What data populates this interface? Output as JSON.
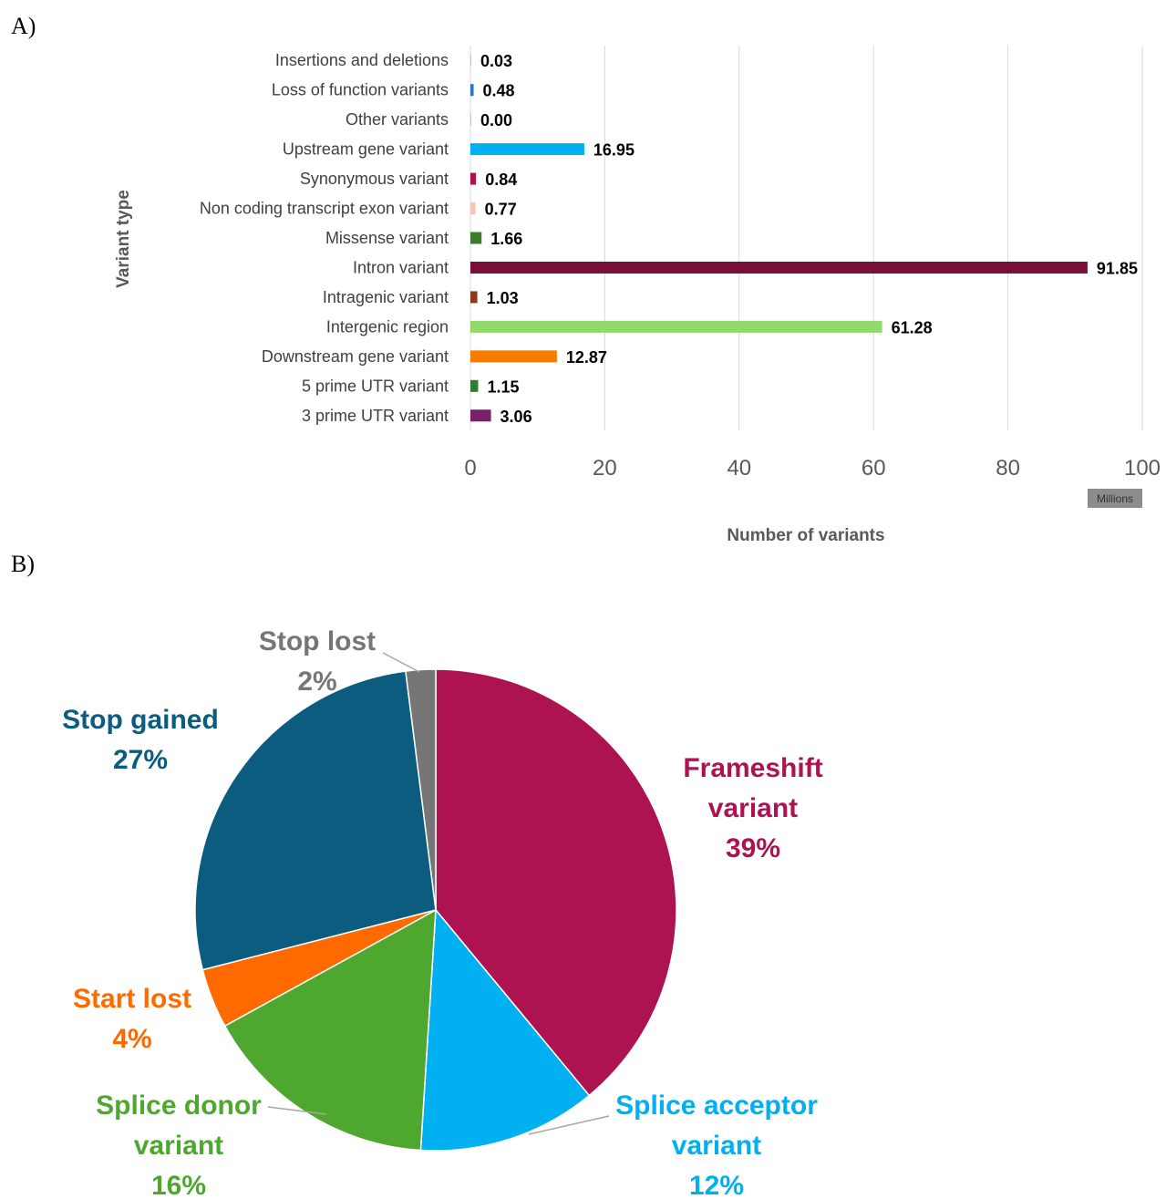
{
  "panels": {
    "a_label": "A)",
    "b_label": "B)"
  },
  "chart_data": [
    {
      "type": "bar",
      "orientation": "horizontal",
      "categories": [
        "Insertions and deletions",
        "Loss of function variants",
        "Other variants",
        "Upstream gene variant",
        "Synonymous variant",
        "Non coding transcript exon variant",
        "Missense variant",
        "Intron variant",
        "Intragenic variant",
        "Intergenic region",
        "Downstream gene variant",
        "5 prime UTR variant",
        "3 prime UTR variant"
      ],
      "values": [
        0.03,
        0.48,
        0.0,
        16.95,
        0.84,
        0.77,
        1.66,
        91.85,
        1.03,
        61.28,
        12.87,
        1.15,
        3.06
      ],
      "value_labels": [
        "0.03",
        "0.48",
        "0.00",
        "16.95",
        "0.84",
        "0.77",
        "1.66",
        "91.85",
        "1.03",
        "61.28",
        "12.87",
        "1.15",
        "3.06"
      ],
      "colors": [
        "#c8c8c8",
        "#2e75b6",
        "#c8c8c8",
        "#00b0f0",
        "#b0124f",
        "#f4c7b5",
        "#3a7d2c",
        "#770f3a",
        "#8b3a1a",
        "#92d96b",
        "#f57c00",
        "#2e7d32",
        "#7b1f6a"
      ],
      "xlim": [
        0,
        100
      ],
      "xticks": [
        0,
        20,
        40,
        60,
        80,
        100
      ],
      "xlabel": "Number of variants",
      "ylabel": "Variant type",
      "unit_badge": "Millions",
      "grid": "vertical"
    },
    {
      "type": "pie",
      "slices": [
        {
          "label": "Frameshift variant",
          "lines": [
            "Frameshift",
            "variant",
            "39%"
          ],
          "value": 39,
          "color": "#ad1351"
        },
        {
          "label": "Splice acceptor variant",
          "lines": [
            "Splice acceptor",
            "variant",
            "12%"
          ],
          "value": 12,
          "color": "#00b0f0"
        },
        {
          "label": "Splice donor variant",
          "lines": [
            "Splice donor",
            "variant",
            "16%"
          ],
          "value": 16,
          "color": "#4ea72e"
        },
        {
          "label": "Start lost",
          "lines": [
            "Start lost",
            "4%"
          ],
          "value": 4,
          "color": "#ff6a00"
        },
        {
          "label": "Stop gained",
          "lines": [
            "Stop gained",
            "27%"
          ],
          "value": 27,
          "color": "#0b5c7e"
        },
        {
          "label": "Stop lost",
          "lines": [
            "Stop lost",
            "2%"
          ],
          "value": 2,
          "color": "#767676"
        }
      ]
    }
  ]
}
